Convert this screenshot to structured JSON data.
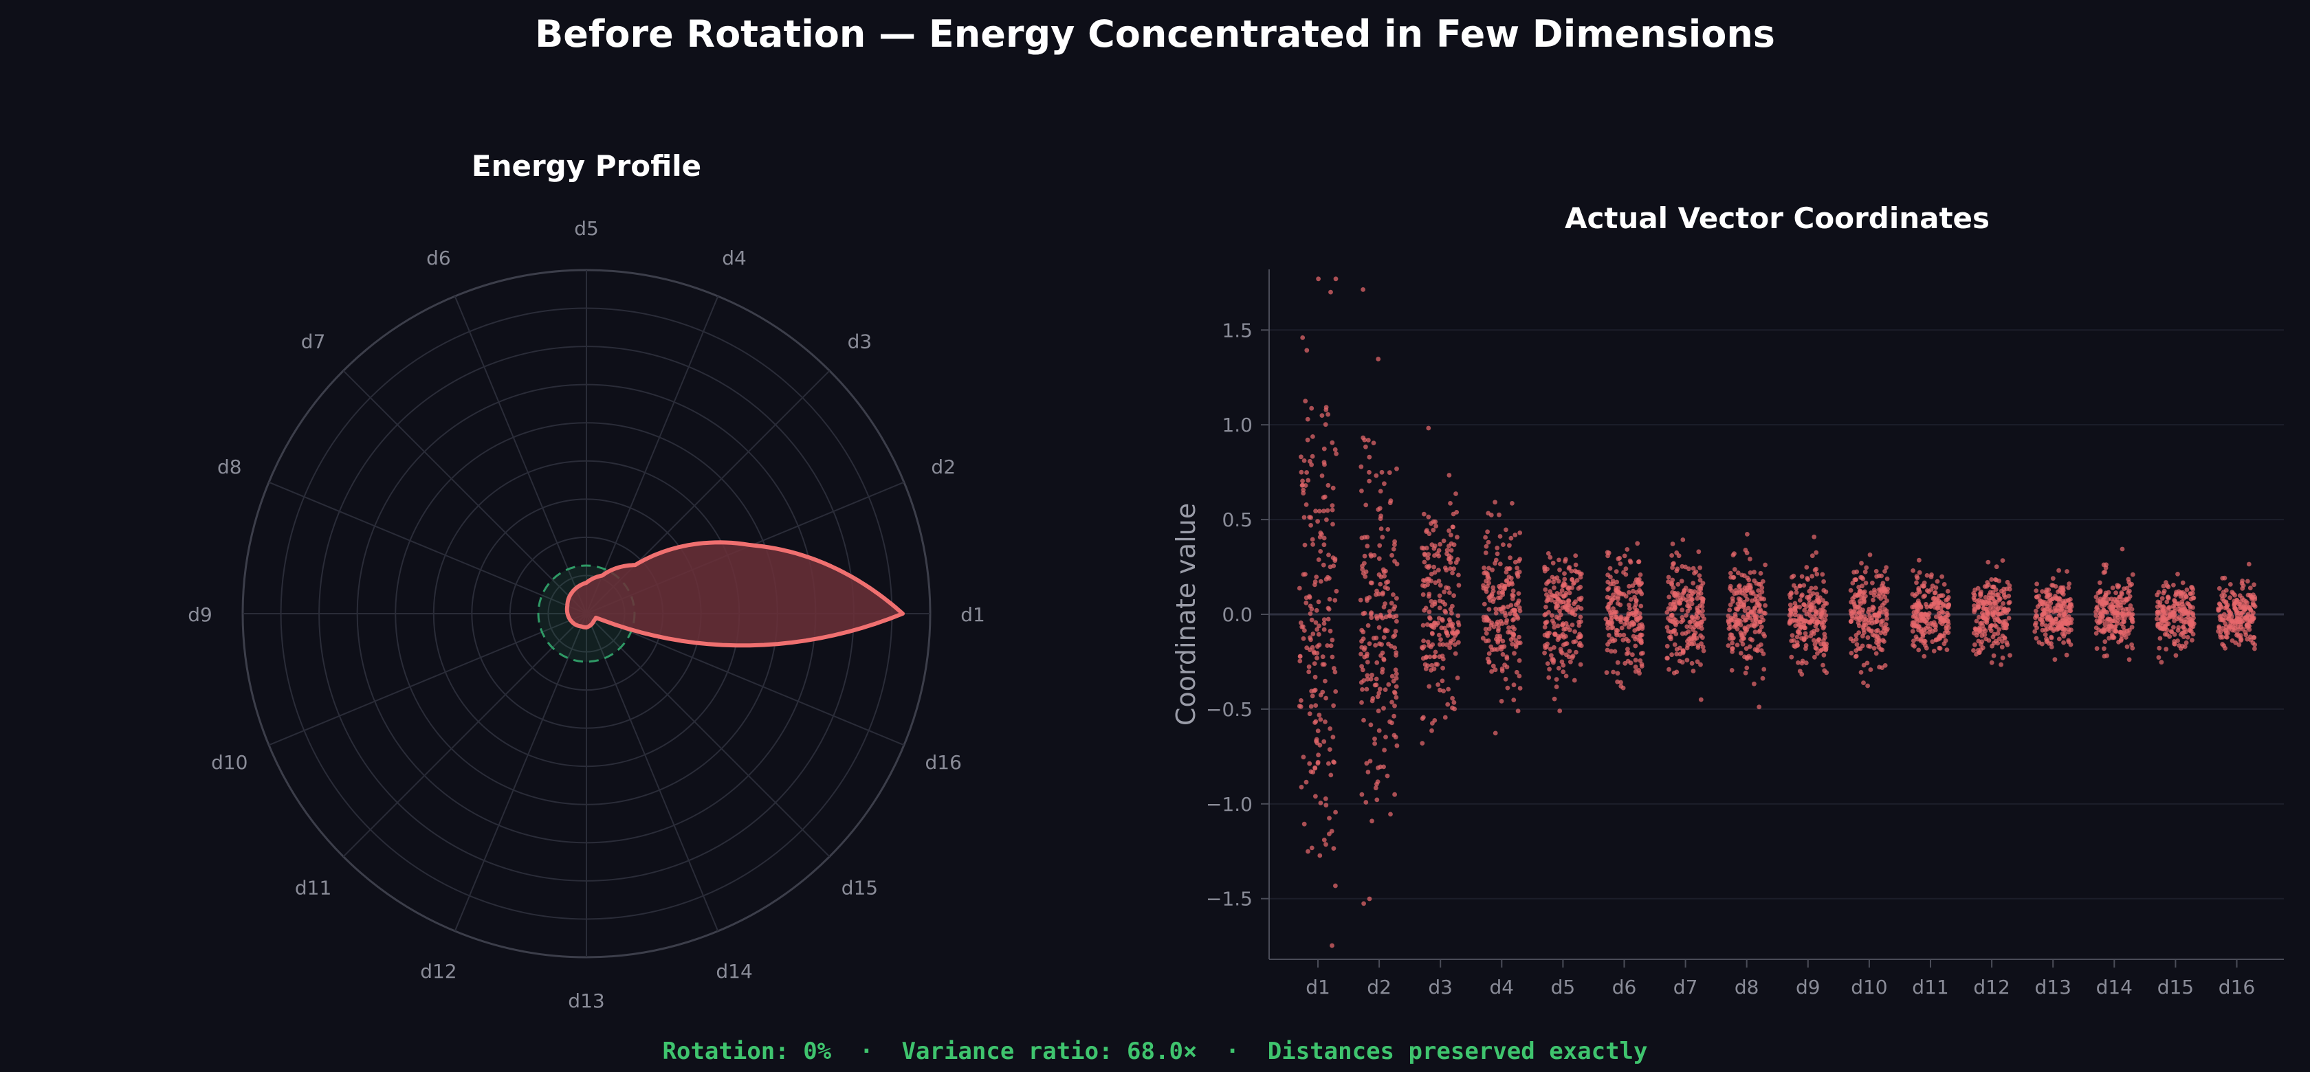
{
  "title": "Before Rotation — Energy Concentrated in Few Dimensions",
  "footer": {
    "rotation": "Rotation: 0%",
    "variance": "Variance ratio: 68.0×",
    "distances": "Distances preserved exactly",
    "separator": "·"
  },
  "colors": {
    "background": "#0e0f18",
    "accent_red": "#f07070",
    "fill_red": "#6b3038",
    "dashed_green": "#2f9a66",
    "grid": "#2a2c38",
    "tick_text": "#8a8c98",
    "footer_green": "#3fc46e"
  },
  "chart_data": [
    {
      "type": "radar",
      "title": "Energy Profile",
      "categories": [
        "d1",
        "d2",
        "d3",
        "d4",
        "d5",
        "d6",
        "d7",
        "d8",
        "d9",
        "d10",
        "d11",
        "d12",
        "d13",
        "d14",
        "d15",
        "d16"
      ],
      "values": [
        0.92,
        0.52,
        0.2,
        0.12,
        0.09,
        0.08,
        0.07,
        0.06,
        0.055,
        0.05,
        0.045,
        0.04,
        0.04,
        0.035,
        0.03,
        0.03
      ],
      "rlim": [
        0,
        1
      ],
      "reference_circle": 0.14,
      "grid": true
    },
    {
      "type": "scatter",
      "title": "Actual Vector Coordinates",
      "xlabel": "",
      "ylabel": "Coordinate value",
      "categories": [
        "d1",
        "d2",
        "d3",
        "d4",
        "d5",
        "d6",
        "d7",
        "d8",
        "d9",
        "d10",
        "d11",
        "d12",
        "d13",
        "d14",
        "d15",
        "d16"
      ],
      "spread_std": [
        0.72,
        0.45,
        0.3,
        0.22,
        0.18,
        0.16,
        0.15,
        0.13,
        0.12,
        0.12,
        0.1,
        0.1,
        0.09,
        0.09,
        0.085,
        0.08
      ],
      "points_per_dimension": 200,
      "ylim": [
        -1.82,
        1.82
      ],
      "yticks": [
        -1.5,
        -1.0,
        -0.5,
        0.0,
        0.5,
        1.0,
        1.5
      ],
      "ytick_labels": [
        "−1.5",
        "−1.0",
        "−0.5",
        "0.0",
        "0.5",
        "1.0",
        "1.5"
      ],
      "grid": true
    }
  ]
}
